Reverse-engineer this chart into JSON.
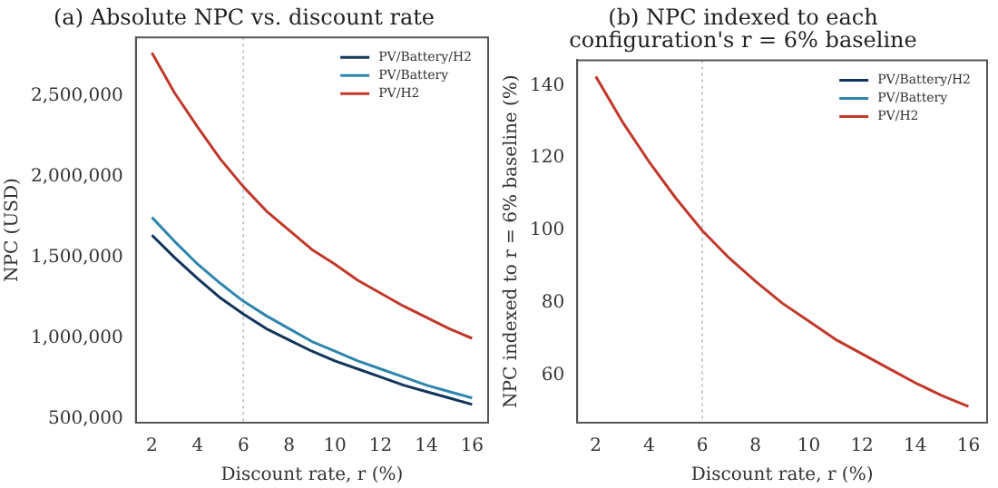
{
  "chart_data": [
    {
      "type": "line",
      "title": "(a) Absolute NPC vs. discount rate",
      "xlabel": "Discount rate, r (%)",
      "ylabel": "NPC (USD)",
      "x": [
        2,
        3,
        4,
        5,
        6,
        7,
        8,
        9,
        10,
        11,
        12,
        13,
        14,
        15,
        16
      ],
      "series": [
        {
          "name": "PV/Battery/H2",
          "color": "#12355b",
          "values": [
            1640000,
            1500000,
            1370000,
            1250000,
            1150000,
            1060000,
            990000,
            920000,
            860000,
            810000,
            760000,
            710000,
            670000,
            630000,
            590000
          ]
        },
        {
          "name": "PV/Battery",
          "color": "#2f86ad",
          "values": [
            1750000,
            1600000,
            1460000,
            1340000,
            1230000,
            1140000,
            1060000,
            980000,
            920000,
            860000,
            810000,
            760000,
            710000,
            670000,
            630000
          ]
        },
        {
          "name": "PV/H2",
          "color": "#c0392b",
          "values": [
            2770000,
            2520000,
            2310000,
            2110000,
            1940000,
            1790000,
            1670000,
            1550000,
            1460000,
            1360000,
            1280000,
            1200000,
            1130000,
            1060000,
            1000000
          ]
        }
      ],
      "xlim": [
        1.3,
        16.7
      ],
      "xticks": [
        2,
        4,
        6,
        8,
        10,
        12,
        14,
        16
      ],
      "ylim": [
        477000,
        2866000
      ],
      "yticks": [
        {
          "value": 500000,
          "label": "500,000"
        },
        {
          "value": 1000000,
          "label": "1,000,000"
        },
        {
          "value": 1500000,
          "label": "1,500,000"
        },
        {
          "value": 2000000,
          "label": "2,000,000"
        },
        {
          "value": 2500000,
          "label": "2,500,000"
        }
      ],
      "ref_lines": [
        {
          "axis": "x",
          "value": 6,
          "color": "#bbbbbb",
          "line_style": "dotted"
        }
      ],
      "legend": "top right",
      "grid": false
    },
    {
      "type": "line",
      "title": "(b) NPC indexed to each configuration's r = 6% baseline",
      "xlabel": "Discount rate, r (%)",
      "ylabel": "NPC indexed to r = 6% baseline (%)",
      "x": [
        2,
        3,
        4,
        5,
        6,
        7,
        8,
        9,
        10,
        11,
        12,
        13,
        14,
        15,
        16
      ],
      "series": [
        {
          "name": "PV/Battery/H2",
          "color": "#12355b",
          "values": [
            null,
            null,
            null,
            null,
            null,
            null,
            null,
            null,
            null,
            null,
            null,
            null,
            null,
            null,
            null
          ]
        },
        {
          "name": "PV/Battery",
          "color": "#2f86ad",
          "values": [
            null,
            null,
            null,
            null,
            null,
            null,
            null,
            null,
            null,
            null,
            null,
            null,
            null,
            null,
            null
          ]
        },
        {
          "name": "PV/H2",
          "color": "#c0392b",
          "values": [
            142.5,
            130,
            119,
            109,
            100,
            92.5,
            86,
            80,
            75,
            70,
            66,
            62,
            58,
            54.5,
            51.5
          ]
        }
      ],
      "xlim": [
        1.3,
        16.7
      ],
      "xticks": [
        2,
        4,
        6,
        8,
        10,
        12,
        14,
        16
      ],
      "ylim": [
        47,
        147
      ],
      "yticks": [
        60,
        80,
        100,
        120,
        140
      ],
      "ref_lines": [
        {
          "axis": "x",
          "value": 6,
          "color": "#bbbbbb",
          "line_style": "dotted"
        }
      ],
      "legend": "top right",
      "grid": false
    }
  ]
}
